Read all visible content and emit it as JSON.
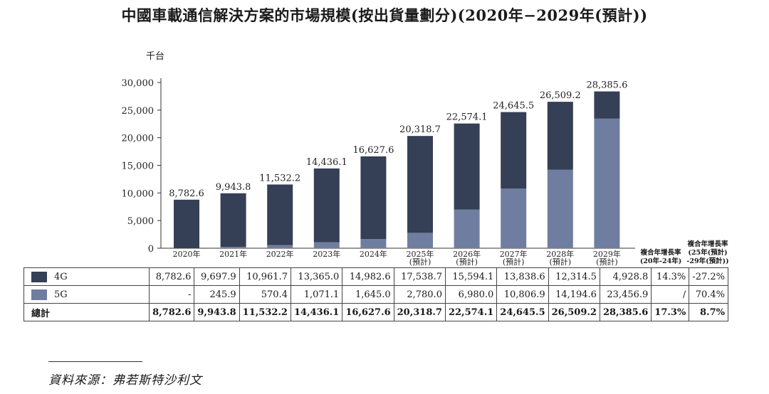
{
  "title": "中國車載通信解決方案的市場規模(按出貨量劃分)(2020年−2029年(預計))",
  "source": "資料來源：弗若斯特沙利文",
  "colors": {
    "c4g": "#353f55",
    "c5g": "#6f7ea0"
  },
  "chart_data": {
    "type": "bar",
    "stacked": true,
    "title": "中國車載通信解決方案的市場規模(按出貨量劃分)(2020年−2029年(預計))",
    "unit": "千台",
    "ylim": [
      0,
      30000
    ],
    "yticks": [
      "30,000",
      "25,000",
      "20,000",
      "15,000",
      "10,000",
      "5,000",
      "0"
    ],
    "ytick_values": [
      30000,
      25000,
      20000,
      15000,
      10000,
      5000,
      0
    ],
    "categories": [
      [
        "2020年"
      ],
      [
        "2021年"
      ],
      [
        "2022年"
      ],
      [
        "2023年"
      ],
      [
        "2024年"
      ],
      [
        "2025年",
        "(預計)"
      ],
      [
        "2026年",
        "(預計)"
      ],
      [
        "2027年",
        "(預計)"
      ],
      [
        "2028年",
        "(預計)"
      ],
      [
        "2029年",
        "(預計)"
      ]
    ],
    "series": [
      {
        "name": "4G",
        "values": [
          8782.6,
          9697.9,
          10961.7,
          13365.0,
          14982.6,
          17538.7,
          15594.1,
          13838.6,
          12314.5,
          4928.8
        ]
      },
      {
        "name": "5G",
        "values": [
          0,
          245.9,
          570.4,
          1071.1,
          1645.0,
          2780.0,
          6980.0,
          10806.9,
          14194.6,
          23456.9
        ]
      }
    ],
    "totals": [
      8782.6,
      9943.8,
      11532.2,
      14436.1,
      16627.6,
      20318.7,
      22574.1,
      24645.5,
      26509.2,
      28385.6
    ],
    "total_labels": [
      "8,782.6",
      "9,943.8",
      "11,532.2",
      "14,436.1",
      "16,627.6",
      "20,318.7",
      "22,574.1",
      "24,645.5",
      "26,509.2",
      "28,385.6"
    ]
  },
  "cagr_headers": [
    [
      "複合年增長率",
      "(20年-24年)"
    ],
    [
      "複合年增長率",
      "(25年(預計)",
      "-29年(預計))"
    ]
  ],
  "table": {
    "rows": [
      {
        "label": "4G",
        "swatch": "c4g",
        "cells": [
          "8,782.6",
          "9,697.9",
          "10,961.7",
          "13,365.0",
          "14,982.6",
          "17,538.7",
          "15,594.1",
          "13,838.6",
          "12,314.5",
          "4,928.8",
          "14.3%",
          "-27.2%"
        ],
        "bold": false
      },
      {
        "label": "5G",
        "swatch": "c5g",
        "cells": [
          "-",
          "245.9",
          "570.4",
          "1,071.1",
          "1,645.0",
          "2,780.0",
          "6,980.0",
          "10,806.9",
          "14,194.6",
          "23,456.9",
          "/",
          "70.4%"
        ],
        "bold": false
      },
      {
        "label": "總計",
        "swatch": null,
        "cells": [
          "8,782.6",
          "9,943.8",
          "11,532.2",
          "14,436.1",
          "16,627.6",
          "20,318.7",
          "22,574.1",
          "24,645.5",
          "26,509.2",
          "28,385.6",
          "17.3%",
          "8.7%"
        ],
        "bold": true
      }
    ]
  }
}
